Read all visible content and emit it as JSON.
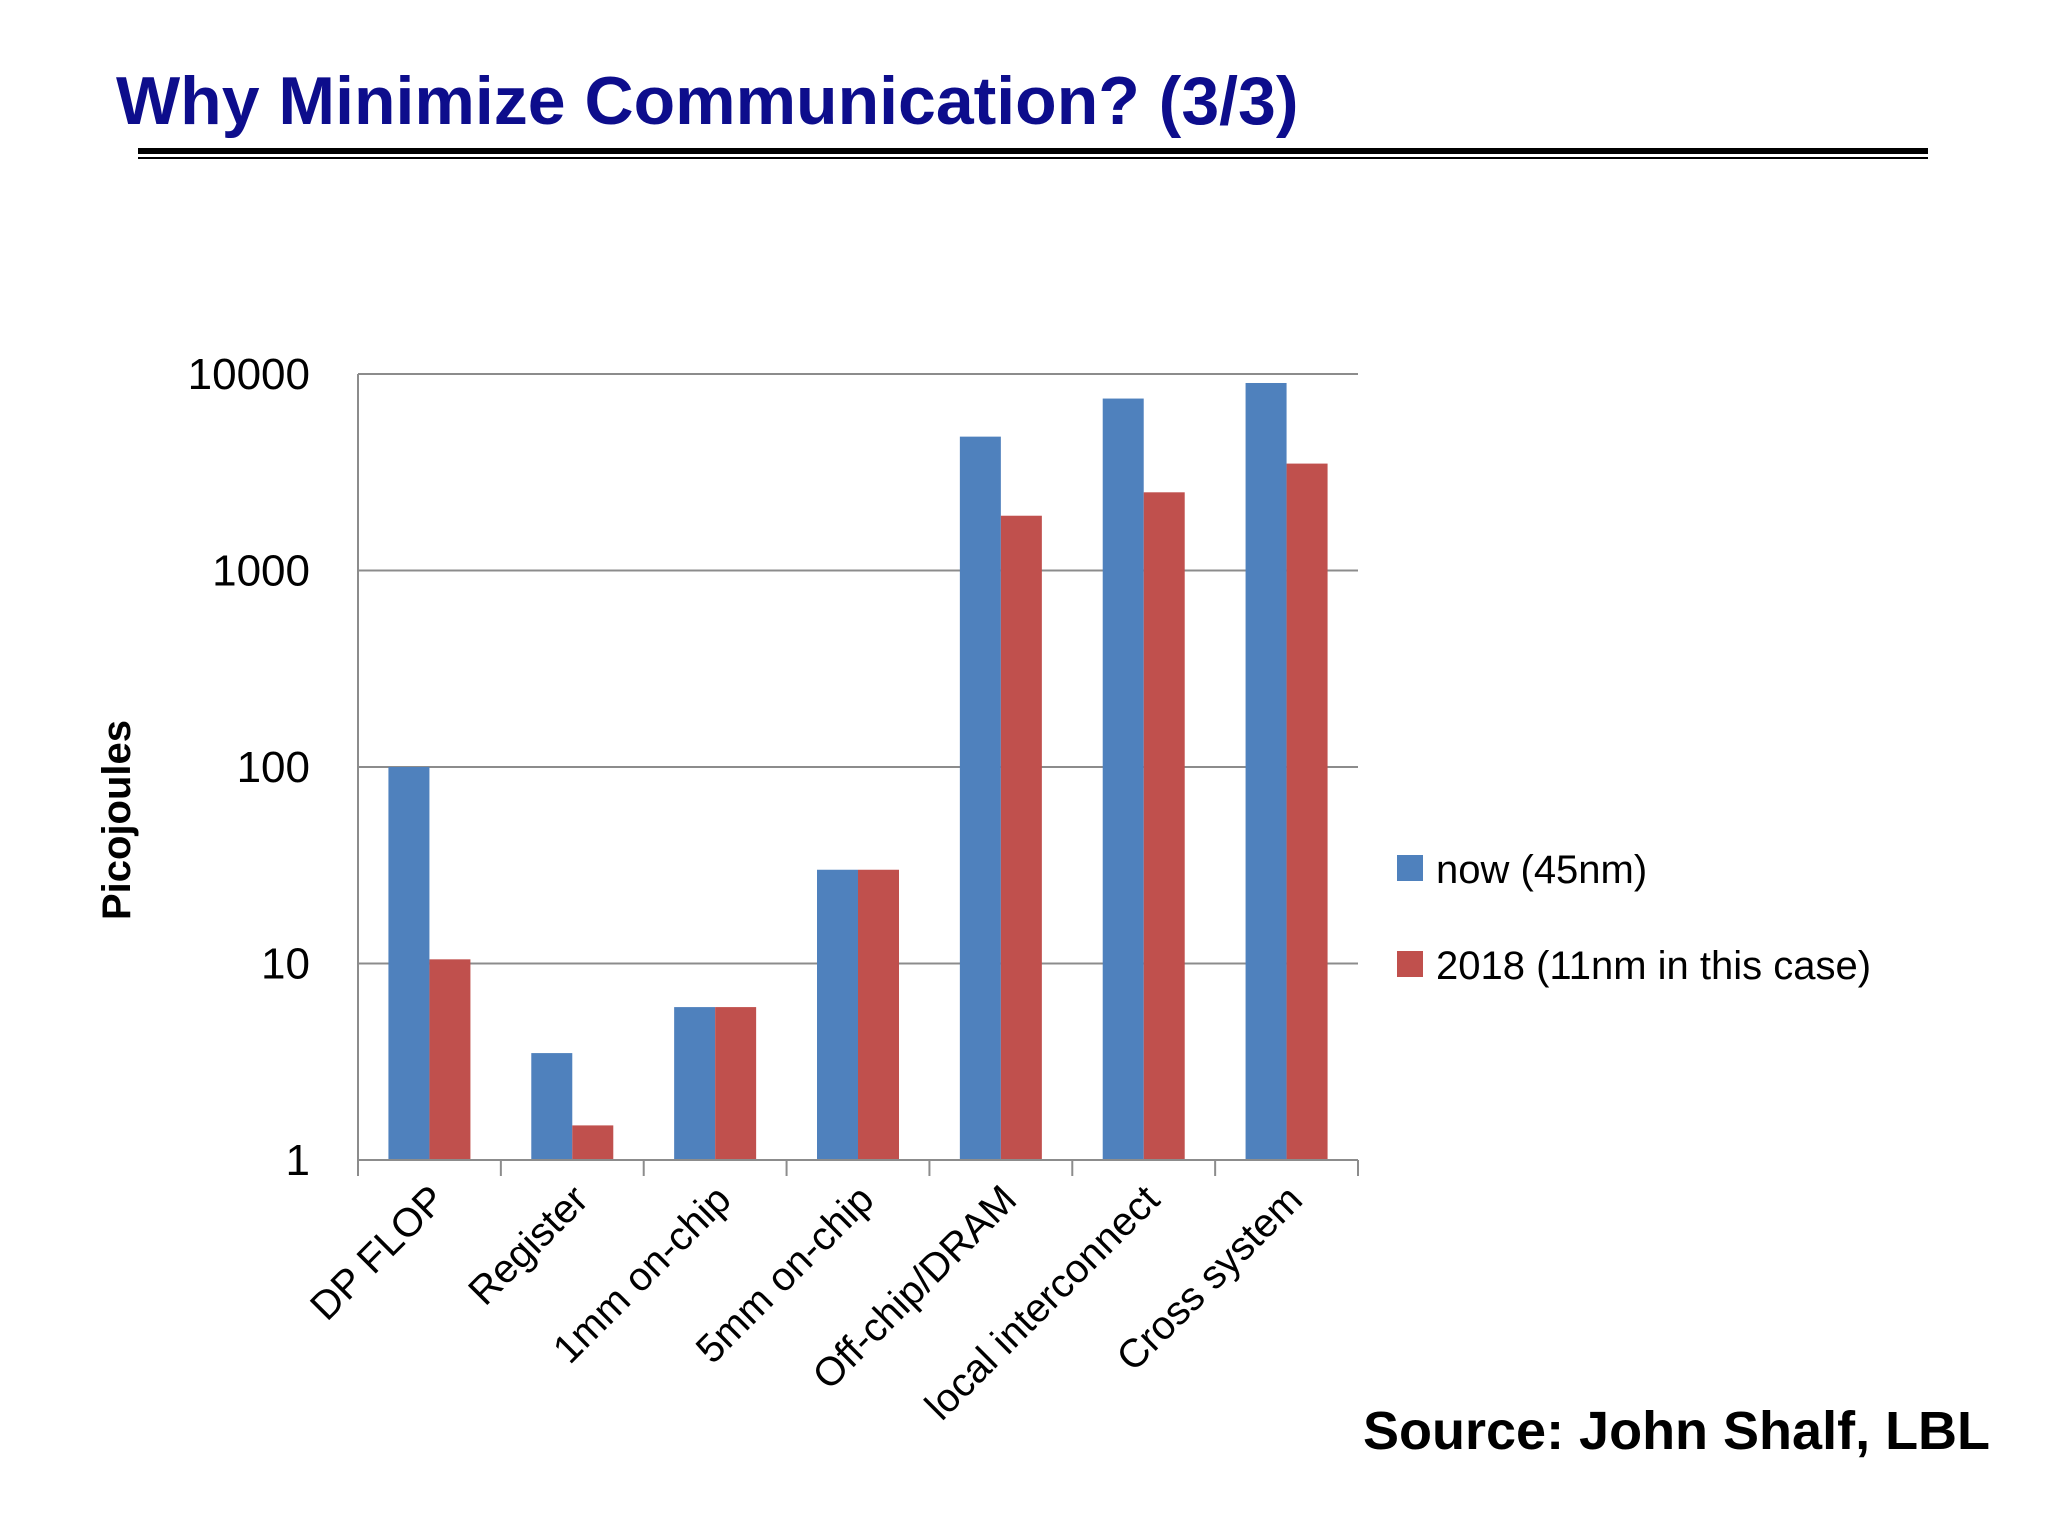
{
  "slide": {
    "title": "Why Minimize Communication? (3/3)",
    "source": "Source: John Shalf, LBL"
  },
  "chart_data": {
    "type": "bar",
    "ylabel": "Picojoules",
    "scale": "log",
    "ylim": [
      1,
      10000
    ],
    "yticks": [
      "1",
      "10",
      "100",
      "1000",
      "10000"
    ],
    "grid": true,
    "legend_position": "right",
    "categories": [
      "DP FLOP",
      "Register",
      "1mm on-chip",
      "5mm on-chip",
      "Off-chip/DRAM",
      "local interconnect",
      "Cross system"
    ],
    "series": [
      {
        "name": "now (45nm)",
        "color": "#4f81bd",
        "values": [
          100,
          3.5,
          6,
          30,
          4800,
          7500,
          9000
        ]
      },
      {
        "name": "2018 (11nm in this case)",
        "color": "#c0504d",
        "values": [
          10.5,
          1.5,
          6,
          30,
          1900,
          2500,
          3500
        ]
      }
    ]
  }
}
